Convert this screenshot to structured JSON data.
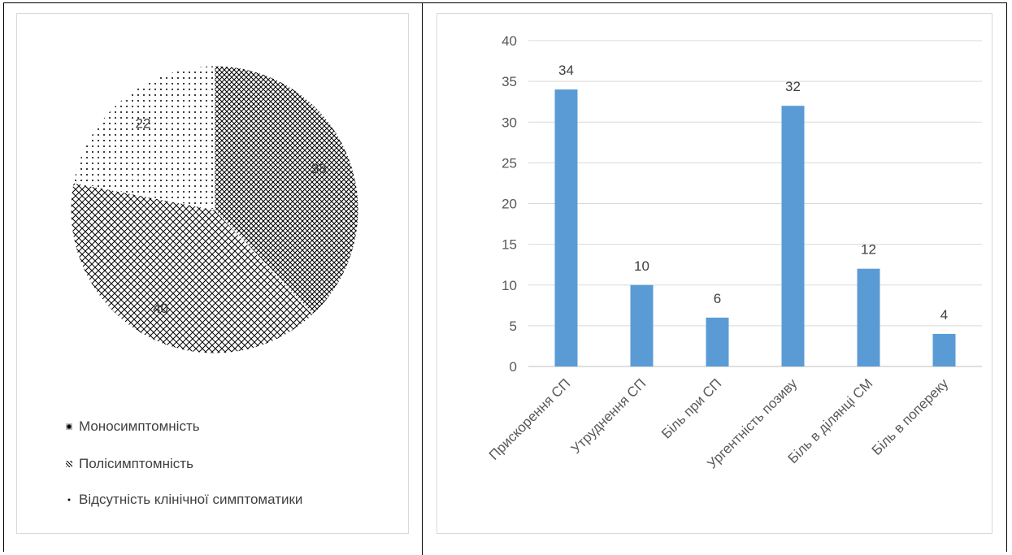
{
  "chart_data": [
    {
      "type": "pie",
      "slices": [
        {
          "label": "Моносимптомність",
          "value": 38,
          "pattern": "dense-dots"
        },
        {
          "label": "Полісимптомність",
          "value": 40,
          "pattern": "crosshatch"
        },
        {
          "label": "Відсутність клінічної симптоматики",
          "value": 22,
          "pattern": "sparse-dots"
        }
      ],
      "legend_position": "bottom",
      "data_labels": true
    },
    {
      "type": "bar",
      "categories": [
        "Прискорення СП",
        "Утруднення СП",
        "Біль при СП",
        "Ургентність позиву",
        "Біль в ділянці СМ",
        "Біль в поперeку"
      ],
      "values": [
        34,
        10,
        6,
        32,
        12,
        4
      ],
      "yticks": [
        0,
        5,
        10,
        15,
        20,
        25,
        30,
        35,
        40
      ],
      "ylim": [
        0,
        40
      ],
      "grid": true,
      "bar_color": "#5b9bd5",
      "data_labels": true
    }
  ]
}
